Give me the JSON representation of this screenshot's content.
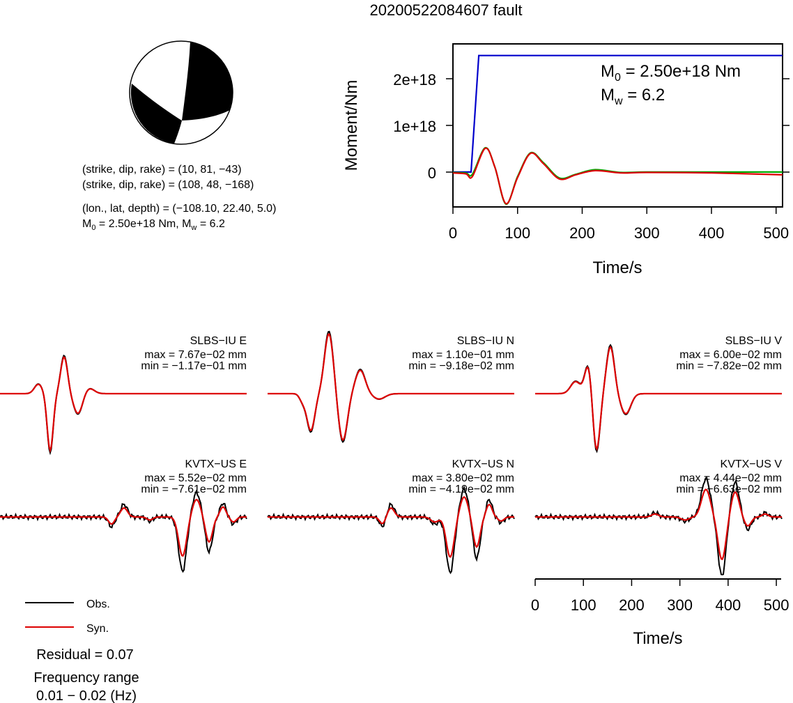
{
  "title": "20200522084607 fault",
  "mechanism": {
    "line1": "(strike, dip, rake) = (10, 81, −43)",
    "line2": "(strike, dip, rake) = (108, 48, −168)",
    "line3": "(lon., lat, depth) = (−108.10, 22.40, 5.0)",
    "m0_label": "M",
    "m0_sub": "0",
    "m0_rest": " = 2.50e+18 Nm, M",
    "mw_sub": "w",
    "mw_rest": " = 6.2"
  },
  "moment_plot": {
    "ylabel": "Moment/Nm",
    "xlabel": "Time/s",
    "m0_prefix": "M",
    "m0_sub": "0",
    "m0_text": " = 2.50e+18 Nm",
    "mw_prefix": "M",
    "mw_sub": "w",
    "mw_text": " = 6.2",
    "yticks": [
      "0",
      "1e+18",
      "2e+18"
    ],
    "xticks": [
      "0",
      "100",
      "200",
      "300",
      "400",
      "500"
    ],
    "colors": {
      "moment": "#0000cc",
      "rate_obs": "#00aa00",
      "rate_syn": "#dd0000"
    }
  },
  "waveforms": [
    {
      "station": "SLBS−IU E",
      "max": "max = 7.67e−02 mm",
      "min": "min = −1.17e−01 mm"
    },
    {
      "station": "SLBS−IU N",
      "max": "max = 1.10e−01 mm",
      "min": "min = −9.18e−02 mm"
    },
    {
      "station": "SLBS−IU V",
      "max": "max = 6.00e−02 mm",
      "min": "min = −7.82e−02 mm"
    },
    {
      "station": "KVTX−US E",
      "max": "max = 5.52e−02 mm",
      "min": "min = −7.61e−02 mm"
    },
    {
      "station": "KVTX−US N",
      "max": "max = 3.80e−02 mm",
      "min": "min = −4.19e−02 mm"
    },
    {
      "station": "KVTX−US V",
      "max": "max = 4.44e−02 mm",
      "min": "min = −6.63e−02 mm"
    }
  ],
  "wave_axis": {
    "xlabel": "Time/s",
    "xticks": [
      "0",
      "100",
      "200",
      "300",
      "400",
      "500"
    ]
  },
  "legend": {
    "obs": "Obs.",
    "syn": "Syn.",
    "obs_color": "#000000",
    "syn_color": "#dd0000"
  },
  "residual": "Residual = 0.07",
  "freq_label": "Frequency range",
  "freq_value": "0.01 − 0.02 (Hz)",
  "chart_data": {
    "type": "line",
    "title": "20200522084607 fault",
    "xlabel": "Time/s",
    "ylabel": "Moment/Nm",
    "xlim": [
      0,
      510
    ],
    "ylim": [
      -7.5e+17,
      2.75e+18
    ],
    "series": [
      {
        "x": [
          0,
          28,
          40,
          510
        ],
        "y": [
          0,
          0,
          2.5e+18,
          2.5e+18
        ]
      },
      {
        "x": [
          0,
          20,
          30,
          50,
          65,
          82,
          100,
          120,
          140,
          165,
          190,
          220,
          260,
          300,
          400,
          510
        ],
        "y": [
          -1e+16,
          -2e+16,
          -5e+16,
          5.2e+17,
          1e+17,
          -6.9e+17,
          -1e+17,
          4.1e+17,
          2e+17,
          -1.3e+17,
          -5e+16,
          5e+16,
          -1e+16,
          0,
          0,
          0
        ]
      },
      {
        "x": [
          0,
          20,
          30,
          50,
          65,
          82,
          100,
          120,
          140,
          165,
          190,
          220,
          260,
          300,
          400,
          510
        ],
        "y": [
          -2e+16,
          -4e+16,
          -1e+17,
          5.1e+17,
          1e+17,
          -6.8e+17,
          -1.2e+17,
          4e+17,
          1.8e+17,
          -1.5e+17,
          -6e+16,
          3e+16,
          -2e+16,
          -1e+16,
          -2e+16,
          -6e+16
        ]
      }
    ]
  }
}
